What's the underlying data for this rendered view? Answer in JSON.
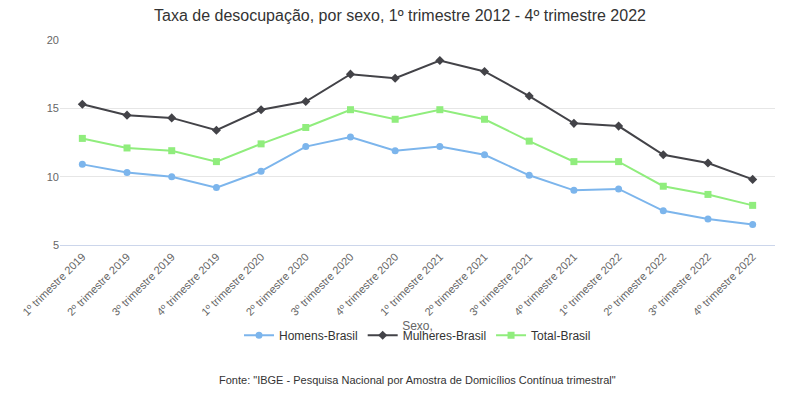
{
  "chart_data": {
    "type": "line",
    "title": "Taxa de desocupação, por sexo, 1º trimestre 2012 - 4º trimestre 2022",
    "x_label": "Sexo,",
    "source": "Fonte: \"IBGE - Pesquisa Nacional por Amostra de Domicílios Contínua trimestral\"",
    "categories": [
      "1º trimestre 2019",
      "2º trimestre 2019",
      "3º trimestre 2019",
      "4º trimestre 2019",
      "1º trimestre 2020",
      "2º trimestre 2020",
      "3º trimestre 2020",
      "4º trimestre 2020",
      "1º trimestre 2021",
      "2º trimestre 2021",
      "3º trimestre 2021",
      "4º trimestre 2021",
      "1º trimestre 2022",
      "2º trimestre 2022",
      "3º trimestre 2022",
      "4º trimestre 2022"
    ],
    "series": [
      {
        "name": "Homens-Brasil",
        "color": "#7cb5ec",
        "marker": "circle",
        "values": [
          10.9,
          10.3,
          10.0,
          9.2,
          10.4,
          12.2,
          12.9,
          11.9,
          12.2,
          11.6,
          10.1,
          9.0,
          9.1,
          7.5,
          6.9,
          6.5
        ]
      },
      {
        "name": "Mulheres-Brasil",
        "color": "#434348",
        "marker": "diamond",
        "values": [
          15.3,
          14.5,
          14.3,
          13.4,
          14.9,
          15.5,
          17.5,
          17.2,
          18.5,
          17.7,
          15.9,
          13.9,
          13.7,
          11.6,
          11.0,
          9.8
        ]
      },
      {
        "name": "Total-Brasil",
        "color": "#90ed7d",
        "marker": "square",
        "values": [
          12.8,
          12.1,
          11.9,
          11.1,
          12.4,
          13.6,
          14.9,
          14.2,
          14.9,
          14.2,
          12.6,
          11.1,
          11.1,
          9.3,
          8.7,
          7.9
        ]
      }
    ],
    "ylim": [
      5,
      20
    ],
    "yticks": [
      5,
      10,
      15,
      20
    ],
    "grid": true,
    "legend": "bottom"
  }
}
